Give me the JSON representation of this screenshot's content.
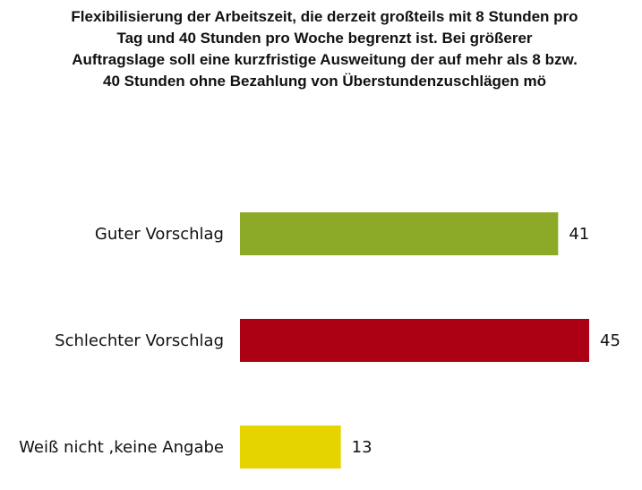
{
  "title_lines": [
    "Flexibilisierung der Arbeitszeit, die derzeit großteils mit 8 Stunden pro",
    "Tag und 40 Stunden pro Woche begrenzt ist. Bei größerer",
    "Auftragslage soll eine kurzfristige Ausweitung der auf mehr als 8 bzw.",
    "40 Stunden ohne Bezahlung von Überstundenzuschlägen mö"
  ],
  "chart_data": {
    "type": "bar",
    "orientation": "horizontal",
    "title": "Flexibilisierung der Arbeitszeit, die derzeit großteils mit 8 Stunden pro Tag und 40 Stunden pro Woche begrenzt ist. Bei größerer Auftragslage soll eine kurzfristige Ausweitung der auf mehr als 8 bzw. 40 Stunden ohne Bezahlung von Überstundenzuschlägen mö",
    "categories": [
      "Guter Vorschlag",
      "Schlechter Vorschlag",
      "Weiß nicht ,keine Angabe"
    ],
    "values": [
      41,
      45,
      13
    ],
    "colors": [
      "#8caa28",
      "#ac0015",
      "#e6d400"
    ],
    "xlabel": "",
    "ylabel": "",
    "xlim": [
      0,
      45
    ],
    "grid": false,
    "legend": "none",
    "data_labels": true
  }
}
